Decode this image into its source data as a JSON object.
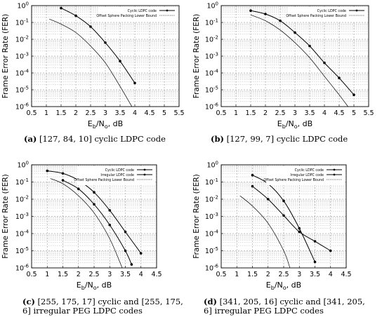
{
  "chart_data": [
    {
      "type": "line",
      "caption_tag": "(a)",
      "caption_text": "[127, 84, 10] cyclic LDPC code",
      "xlabel_main": "E",
      "xlabel_sub1": "b",
      "xlabel_mid": "/N",
      "xlabel_sub2": "o",
      "xlabel_tail": ", dB",
      "ylabel": "Frame Error Rate (FER)",
      "xlim": [
        0.5,
        5.5
      ],
      "ylim_exp": [
        -6,
        0
      ],
      "y_scale": "log",
      "xticks": [
        "0.5",
        "1",
        "1.5",
        "2",
        "2.5",
        "3",
        "3.5",
        "4",
        "4.5",
        "5",
        "5.5"
      ],
      "yticks": [
        "10^-6",
        "10^-5",
        "10^-4",
        "10^-3",
        "10^-2",
        "10^-1",
        "10^0"
      ],
      "grid": true,
      "legend_position": "top-right",
      "series": [
        {
          "name": "Cyclic LDPC code",
          "marker": true,
          "style": "solid",
          "x": [
            1.5,
            2.0,
            2.5,
            3.0,
            3.5,
            4.0
          ],
          "y_log10": [
            -0.15,
            -0.6,
            -1.25,
            -2.2,
            -3.3,
            -4.6
          ]
        },
        {
          "name": "Offset Sphere Packing Lower Bound",
          "marker": false,
          "style": "solid-thin",
          "x": [
            1.1,
            1.5,
            2.0,
            2.5,
            3.0,
            3.5,
            3.9
          ],
          "y_log10": [
            -0.8,
            -1.1,
            -1.6,
            -2.4,
            -3.4,
            -4.8,
            -6.0
          ]
        }
      ]
    },
    {
      "type": "line",
      "caption_tag": "(b)",
      "caption_text": "[127, 99, 7] cyclic LDPC code",
      "xlabel_main": "E",
      "xlabel_sub1": "b",
      "xlabel_mid": "/N",
      "xlabel_sub2": "o",
      "xlabel_tail": ", dB",
      "ylabel": "Frame Error Rate (FER)",
      "xlim": [
        0.5,
        5.5
      ],
      "ylim_exp": [
        -6,
        0
      ],
      "y_scale": "log",
      "xticks": [
        "0.5",
        "1",
        "1.5",
        "2",
        "2.5",
        "3",
        "3.5",
        "4",
        "4.5",
        "5",
        "5.5"
      ],
      "yticks": [
        "10^-6",
        "10^-5",
        "10^-4",
        "10^-3",
        "10^-2",
        "10^-1",
        "10^0"
      ],
      "grid": true,
      "legend_position": "top-right",
      "series": [
        {
          "name": "Cyclic LDPC code",
          "marker": true,
          "style": "solid",
          "x": [
            1.5,
            2.0,
            2.5,
            3.0,
            3.5,
            4.0,
            4.5,
            5.0
          ],
          "y_log10": [
            -0.3,
            -0.5,
            -0.9,
            -1.6,
            -2.4,
            -3.4,
            -4.3,
            -5.3
          ]
        },
        {
          "name": "Offset Sphere Packing Lower Bound",
          "marker": false,
          "style": "solid-thin",
          "x": [
            1.5,
            2.0,
            2.5,
            3.0,
            3.5,
            4.0,
            4.5,
            4.8
          ],
          "y_log10": [
            -0.55,
            -0.9,
            -1.45,
            -2.2,
            -3.1,
            -4.2,
            -5.3,
            -6.0
          ]
        }
      ]
    },
    {
      "type": "line",
      "caption_tag": "(c)",
      "caption_text": "[255, 175, 17] cyclic and [255, 175, 6] irregular PEG LDPC codes",
      "xlabel_main": "E",
      "xlabel_sub1": "b",
      "xlabel_mid": "/N",
      "xlabel_sub2": "o",
      "xlabel_tail": ", dB",
      "ylabel": "Frame Error Rate (FER)",
      "xlim": [
        0.5,
        4.5
      ],
      "ylim_exp": [
        -6,
        0
      ],
      "y_scale": "log",
      "xticks": [
        "0.5",
        "1",
        "1.5",
        "2",
        "2.5",
        "3",
        "3.5",
        "4",
        "4.5"
      ],
      "yticks": [
        "10^-6",
        "10^-5",
        "10^-4",
        "10^-3",
        "10^-2",
        "10^-1",
        "10^0"
      ],
      "grid": true,
      "legend_position": "top-right",
      "series": [
        {
          "name": "Cyclic LDPC code",
          "marker": true,
          "style": "solid",
          "x": [
            1.0,
            1.5,
            2.0,
            2.5,
            3.0,
            3.5,
            4.0
          ],
          "y_log10": [
            -0.35,
            -0.5,
            -0.9,
            -1.6,
            -2.65,
            -3.9,
            -5.15
          ]
        },
        {
          "name": "Irregular LDPC code",
          "marker": true,
          "style": "solid",
          "x": [
            1.5,
            2.0,
            2.5,
            3.0,
            3.5,
            3.7
          ],
          "y_log10": [
            -0.9,
            -1.4,
            -2.3,
            -3.5,
            -5.0,
            -5.8
          ]
        },
        {
          "name": "Offset Sphere Packing Lower Bound",
          "marker": false,
          "style": "solid-thin",
          "x": [
            1.1,
            1.5,
            2.0,
            2.5,
            3.0,
            3.4
          ],
          "y_log10": [
            -0.8,
            -1.1,
            -1.8,
            -2.8,
            -4.3,
            -6.0
          ]
        }
      ]
    },
    {
      "type": "line",
      "caption_tag": "(d)",
      "caption_text": "[341, 205, 16] cyclic and [341, 205, 6] irregular PEG LDPC codes",
      "xlabel_main": "E",
      "xlabel_sub1": "b",
      "xlabel_mid": "/N",
      "xlabel_sub2": "o",
      "xlabel_tail": ", dB",
      "ylabel": "Frame Error Rate (FER)",
      "xlim": [
        0.5,
        4.5
      ],
      "ylim_exp": [
        -6,
        0
      ],
      "y_scale": "log",
      "xticks": [
        "0.5",
        "1",
        "1.5",
        "2",
        "2.5",
        "3",
        "3.5",
        "4",
        "4.5"
      ],
      "yticks": [
        "10^-6",
        "10^-5",
        "10^-4",
        "10^-3",
        "10^-2",
        "10^-1",
        "10^0"
      ],
      "grid": true,
      "legend_position": "top-right",
      "series": [
        {
          "name": "Cyclic LDPC code",
          "marker": true,
          "style": "solid",
          "x": [
            1.5,
            2.0,
            2.5,
            3.0,
            3.5,
            4.0
          ],
          "y_log10": [
            -1.25,
            -2.0,
            -2.95,
            -3.9,
            -4.45,
            -5.0
          ]
        },
        {
          "name": "Irregular LDPC code",
          "marker": true,
          "style": "solid",
          "x": [
            1.5,
            2.0,
            2.5,
            3.0,
            3.5
          ],
          "y_log10": [
            -0.6,
            -1.1,
            -2.1,
            -3.7,
            -5.65
          ]
        },
        {
          "name": "Offset Sphere Packing Lower Bound",
          "marker": false,
          "style": "solid-thin",
          "x": [
            1.1,
            1.5,
            2.0,
            2.5,
            2.7
          ],
          "y_log10": [
            -1.8,
            -2.4,
            -3.4,
            -5.0,
            -6.0
          ]
        }
      ]
    }
  ]
}
